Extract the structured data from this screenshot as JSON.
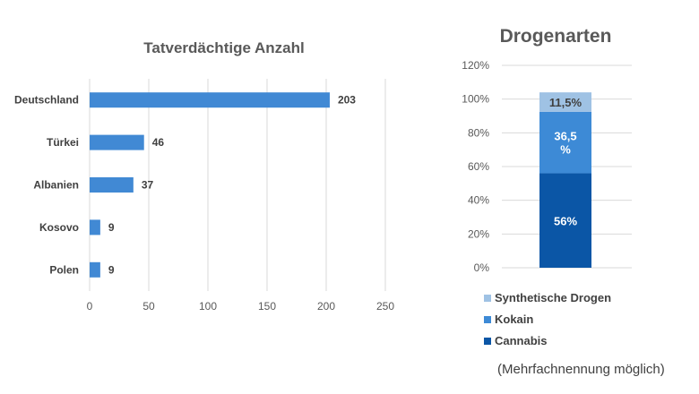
{
  "chart_data": [
    {
      "type": "bar",
      "orientation": "horizontal",
      "title": "Tatverdächtige Anzahl",
      "categories": [
        "Deutschland",
        "Türkei",
        "Albanien",
        "Kosovo",
        "Polen"
      ],
      "values": [
        203,
        46,
        37,
        9,
        9
      ],
      "xlim": [
        0,
        250
      ],
      "xticks": [
        0,
        50,
        100,
        150,
        200,
        250
      ],
      "grid": true,
      "color": "#4189d4"
    },
    {
      "type": "bar",
      "stacked": true,
      "title": "Drogenarten",
      "yticks": [
        "0%",
        "20%",
        "40%",
        "60%",
        "80%",
        "100%",
        "120%"
      ],
      "ylim": [
        0,
        120
      ],
      "series": [
        {
          "name": "Cannabis",
          "value": 56,
          "label": "56%",
          "color": "#0b56a6",
          "text_color": "#ffffff"
        },
        {
          "name": "Kokain",
          "value": 36.5,
          "label": "36,5 %",
          "color": "#3d8ad6",
          "text_color": "#ffffff"
        },
        {
          "name": "Synthetische Drogen",
          "value": 11.5,
          "label": "11,5%",
          "color": "#9fc2e4",
          "text_color": "#404040"
        }
      ],
      "legend": [
        "Synthetische Drogen",
        "Kokain",
        "Cannabis"
      ],
      "legend_position": "bottom",
      "grid": true
    }
  ],
  "note": "(Mehrfachnennung möglich)"
}
